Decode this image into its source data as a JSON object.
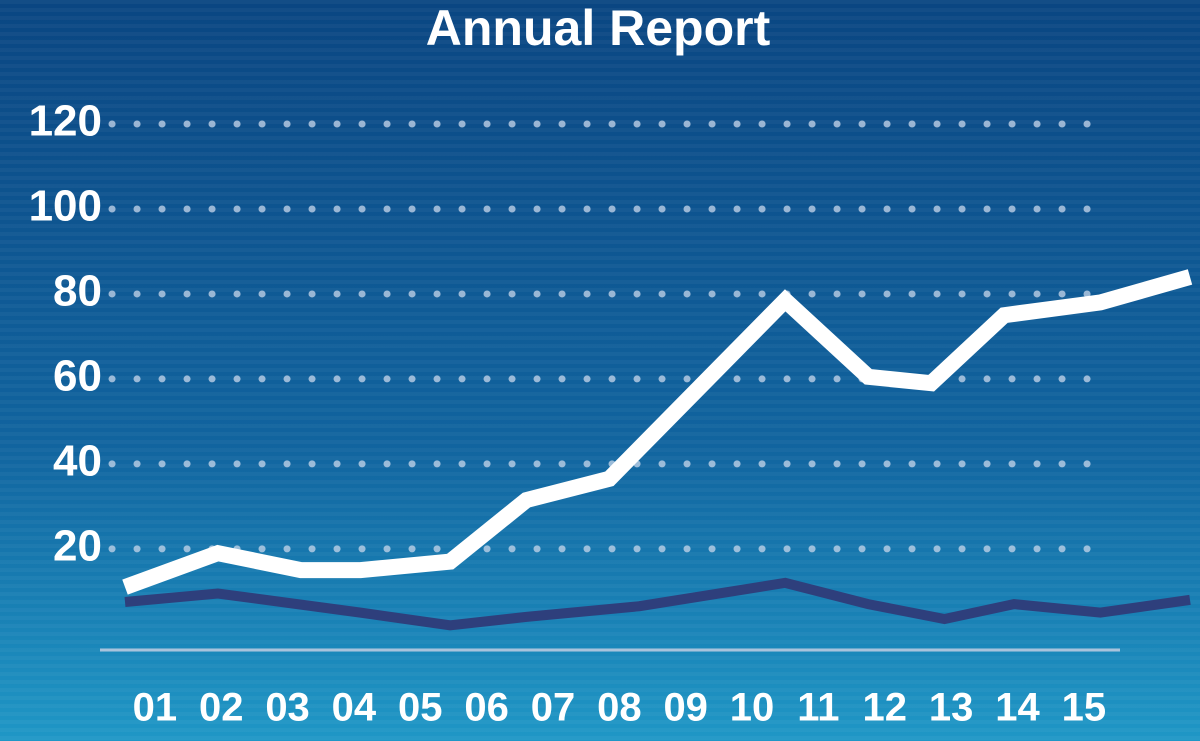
{
  "chart_data": {
    "type": "line",
    "title": "Annual Report",
    "x": [
      0.55,
      1.95,
      3.2,
      4.1,
      5.45,
      6.6,
      7.85,
      10.5,
      11.75,
      12.7,
      13.8,
      15.25,
      16.6
    ],
    "series": [
      {
        "color": "#ffffff",
        "x": [
          0.55,
          1.95,
          3.2,
          4.1,
          5.45,
          6.6,
          7.85,
          10.5,
          11.75,
          12.7,
          13.8,
          15.25,
          16.6
        ],
        "values": [
          11,
          19,
          15,
          15,
          17,
          31.5,
          36.5,
          78.5,
          60.5,
          59,
          75,
          78,
          84
        ]
      },
      {
        "color": "#2e3f7c",
        "x": [
          0.55,
          1.95,
          4.1,
          5.45,
          6.6,
          8.3,
          10.5,
          11.75,
          12.9,
          13.95,
          15.25,
          16.6
        ],
        "values": [
          7.5,
          9.5,
          5,
          2,
          4,
          6.5,
          12,
          7,
          3.5,
          7,
          5,
          8
        ]
      }
    ],
    "xlim": [
      0.55,
      16.6
    ],
    "xticks": [
      {
        "value": 1,
        "label": "01"
      },
      {
        "value": 2,
        "label": "02"
      },
      {
        "value": 3,
        "label": "03"
      },
      {
        "value": 4,
        "label": "04"
      },
      {
        "value": 5,
        "label": "05"
      },
      {
        "value": 6,
        "label": "06"
      },
      {
        "value": 7,
        "label": "07"
      },
      {
        "value": 8,
        "label": "08"
      },
      {
        "value": 9,
        "label": "09"
      },
      {
        "value": 10,
        "label": "10"
      },
      {
        "value": 11,
        "label": "11"
      },
      {
        "value": 12,
        "label": "12"
      },
      {
        "value": 13,
        "label": "13"
      },
      {
        "value": 14,
        "label": "14"
      },
      {
        "value": 15,
        "label": "15"
      }
    ],
    "ylim": [
      -3.8,
      130
    ],
    "yticks": [
      20,
      40,
      60,
      80,
      100,
      120
    ],
    "grid": true
  }
}
